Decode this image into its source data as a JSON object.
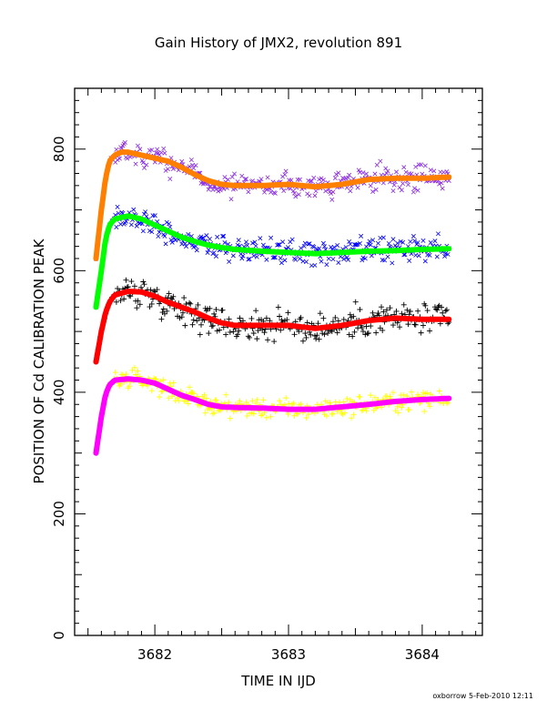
{
  "footer": {
    "credit": "oxborrow  5-Feb-2010 12:11"
  },
  "chart_data": {
    "type": "scatter",
    "title": "Gain History of JMX2, revolution 891",
    "xlabel": "TIME IN IJD",
    "ylabel": "POSITION OF Cd CALIBRATION PEAK",
    "xlim": [
      3681.4,
      3684.45
    ],
    "ylim": [
      0,
      900
    ],
    "xticks": [
      3682,
      3683,
      3684
    ],
    "yticks": [
      0,
      200,
      400,
      600,
      800
    ],
    "grid": false,
    "series": [
      {
        "marker": "x",
        "color": "#8a2be2",
        "role": "data",
        "scatter": 14,
        "points": [
          [
            3681.56,
            620
          ],
          [
            3681.6,
            700
          ],
          [
            3681.63,
            750
          ],
          [
            3681.66,
            780
          ],
          [
            3681.7,
            790
          ],
          [
            3681.75,
            795
          ],
          [
            3681.8,
            795
          ],
          [
            3681.9,
            790
          ],
          [
            3682.0,
            785
          ],
          [
            3682.1,
            780
          ],
          [
            3682.2,
            770
          ],
          [
            3682.3,
            758
          ],
          [
            3682.4,
            748
          ],
          [
            3682.5,
            742
          ],
          [
            3682.6,
            740
          ],
          [
            3682.8,
            740
          ],
          [
            3683.0,
            742
          ],
          [
            3683.2,
            738
          ],
          [
            3683.4,
            742
          ],
          [
            3683.6,
            750
          ],
          [
            3683.8,
            752
          ],
          [
            3684.0,
            752
          ],
          [
            3684.2,
            754
          ]
        ]
      },
      {
        "marker": "line",
        "color": "#ff7f00",
        "role": "fit",
        "points": [
          [
            3681.56,
            620
          ],
          [
            3681.6,
            700
          ],
          [
            3681.63,
            750
          ],
          [
            3681.66,
            780
          ],
          [
            3681.7,
            790
          ],
          [
            3681.75,
            795
          ],
          [
            3681.8,
            795
          ],
          [
            3681.9,
            790
          ],
          [
            3682.0,
            785
          ],
          [
            3682.1,
            780
          ],
          [
            3682.2,
            770
          ],
          [
            3682.3,
            758
          ],
          [
            3682.4,
            748
          ],
          [
            3682.5,
            742
          ],
          [
            3682.6,
            740
          ],
          [
            3682.8,
            740
          ],
          [
            3683.0,
            742
          ],
          [
            3683.2,
            738
          ],
          [
            3683.4,
            742
          ],
          [
            3683.6,
            750
          ],
          [
            3683.8,
            752
          ],
          [
            3684.0,
            752
          ],
          [
            3684.2,
            754
          ]
        ]
      },
      {
        "marker": "x",
        "color": "#0000ff",
        "role": "data",
        "scatter": 14,
        "points": [
          [
            3681.56,
            540
          ],
          [
            3681.6,
            600
          ],
          [
            3681.63,
            650
          ],
          [
            3681.66,
            675
          ],
          [
            3681.7,
            685
          ],
          [
            3681.8,
            690
          ],
          [
            3681.9,
            685
          ],
          [
            3682.0,
            675
          ],
          [
            3682.1,
            665
          ],
          [
            3682.2,
            655
          ],
          [
            3682.3,
            648
          ],
          [
            3682.4,
            642
          ],
          [
            3682.5,
            638
          ],
          [
            3682.6,
            635
          ],
          [
            3682.8,
            632
          ],
          [
            3683.0,
            630
          ],
          [
            3683.2,
            628
          ],
          [
            3683.4,
            630
          ],
          [
            3683.6,
            632
          ],
          [
            3683.8,
            633
          ],
          [
            3684.0,
            635
          ],
          [
            3684.2,
            636
          ]
        ]
      },
      {
        "marker": "line",
        "color": "#00ff00",
        "role": "fit",
        "points": [
          [
            3681.56,
            540
          ],
          [
            3681.6,
            600
          ],
          [
            3681.63,
            650
          ],
          [
            3681.66,
            675
          ],
          [
            3681.7,
            685
          ],
          [
            3681.8,
            690
          ],
          [
            3681.9,
            685
          ],
          [
            3682.0,
            675
          ],
          [
            3682.1,
            665
          ],
          [
            3682.2,
            655
          ],
          [
            3682.3,
            648
          ],
          [
            3682.4,
            642
          ],
          [
            3682.5,
            638
          ],
          [
            3682.6,
            635
          ],
          [
            3682.8,
            632
          ],
          [
            3683.0,
            630
          ],
          [
            3683.2,
            628
          ],
          [
            3683.4,
            630
          ],
          [
            3683.6,
            632
          ],
          [
            3683.8,
            633
          ],
          [
            3684.0,
            635
          ],
          [
            3684.2,
            636
          ]
        ]
      },
      {
        "marker": "+",
        "color": "#000000",
        "role": "data",
        "scatter": 17,
        "points": [
          [
            3681.56,
            450
          ],
          [
            3681.6,
            500
          ],
          [
            3681.63,
            530
          ],
          [
            3681.66,
            548
          ],
          [
            3681.7,
            560
          ],
          [
            3681.8,
            566
          ],
          [
            3681.9,
            565
          ],
          [
            3682.0,
            558
          ],
          [
            3682.1,
            548
          ],
          [
            3682.2,
            540
          ],
          [
            3682.3,
            532
          ],
          [
            3682.4,
            522
          ],
          [
            3682.5,
            514
          ],
          [
            3682.6,
            510
          ],
          [
            3682.8,
            510
          ],
          [
            3683.0,
            510
          ],
          [
            3683.2,
            505
          ],
          [
            3683.4,
            510
          ],
          [
            3683.6,
            518
          ],
          [
            3683.8,
            522
          ],
          [
            3684.0,
            520
          ],
          [
            3684.2,
            520
          ]
        ]
      },
      {
        "marker": "line",
        "color": "#ff0000",
        "role": "fit",
        "points": [
          [
            3681.56,
            450
          ],
          [
            3681.6,
            500
          ],
          [
            3681.63,
            530
          ],
          [
            3681.66,
            548
          ],
          [
            3681.7,
            560
          ],
          [
            3681.8,
            566
          ],
          [
            3681.9,
            565
          ],
          [
            3682.0,
            558
          ],
          [
            3682.1,
            548
          ],
          [
            3682.2,
            540
          ],
          [
            3682.3,
            532
          ],
          [
            3682.4,
            522
          ],
          [
            3682.5,
            514
          ],
          [
            3682.6,
            510
          ],
          [
            3682.8,
            510
          ],
          [
            3683.0,
            510
          ],
          [
            3683.2,
            505
          ],
          [
            3683.4,
            510
          ],
          [
            3683.6,
            518
          ],
          [
            3683.8,
            522
          ],
          [
            3684.0,
            520
          ],
          [
            3684.2,
            520
          ]
        ]
      },
      {
        "marker": "+",
        "color": "#ffff00",
        "role": "data",
        "scatter": 11,
        "points": [
          [
            3681.56,
            300
          ],
          [
            3681.6,
            360
          ],
          [
            3681.63,
            395
          ],
          [
            3681.66,
            412
          ],
          [
            3681.7,
            420
          ],
          [
            3681.8,
            422
          ],
          [
            3681.9,
            420
          ],
          [
            3682.0,
            415
          ],
          [
            3682.1,
            405
          ],
          [
            3682.2,
            395
          ],
          [
            3682.3,
            388
          ],
          [
            3682.4,
            380
          ],
          [
            3682.5,
            376
          ],
          [
            3682.6,
            375
          ],
          [
            3682.8,
            374
          ],
          [
            3683.0,
            372
          ],
          [
            3683.2,
            372
          ],
          [
            3683.4,
            376
          ],
          [
            3683.6,
            380
          ],
          [
            3683.8,
            385
          ],
          [
            3684.0,
            388
          ],
          [
            3684.2,
            390
          ]
        ]
      },
      {
        "marker": "line",
        "color": "#ff00ff",
        "role": "fit",
        "points": [
          [
            3681.56,
            300
          ],
          [
            3681.6,
            360
          ],
          [
            3681.63,
            395
          ],
          [
            3681.66,
            412
          ],
          [
            3681.7,
            420
          ],
          [
            3681.8,
            422
          ],
          [
            3681.9,
            420
          ],
          [
            3682.0,
            415
          ],
          [
            3682.1,
            405
          ],
          [
            3682.2,
            395
          ],
          [
            3682.3,
            388
          ],
          [
            3682.4,
            380
          ],
          [
            3682.5,
            376
          ],
          [
            3682.6,
            375
          ],
          [
            3682.8,
            374
          ],
          [
            3683.0,
            372
          ],
          [
            3683.2,
            372
          ],
          [
            3683.4,
            376
          ],
          [
            3683.6,
            380
          ],
          [
            3683.8,
            385
          ],
          [
            3684.0,
            388
          ],
          [
            3684.2,
            390
          ]
        ]
      }
    ]
  }
}
